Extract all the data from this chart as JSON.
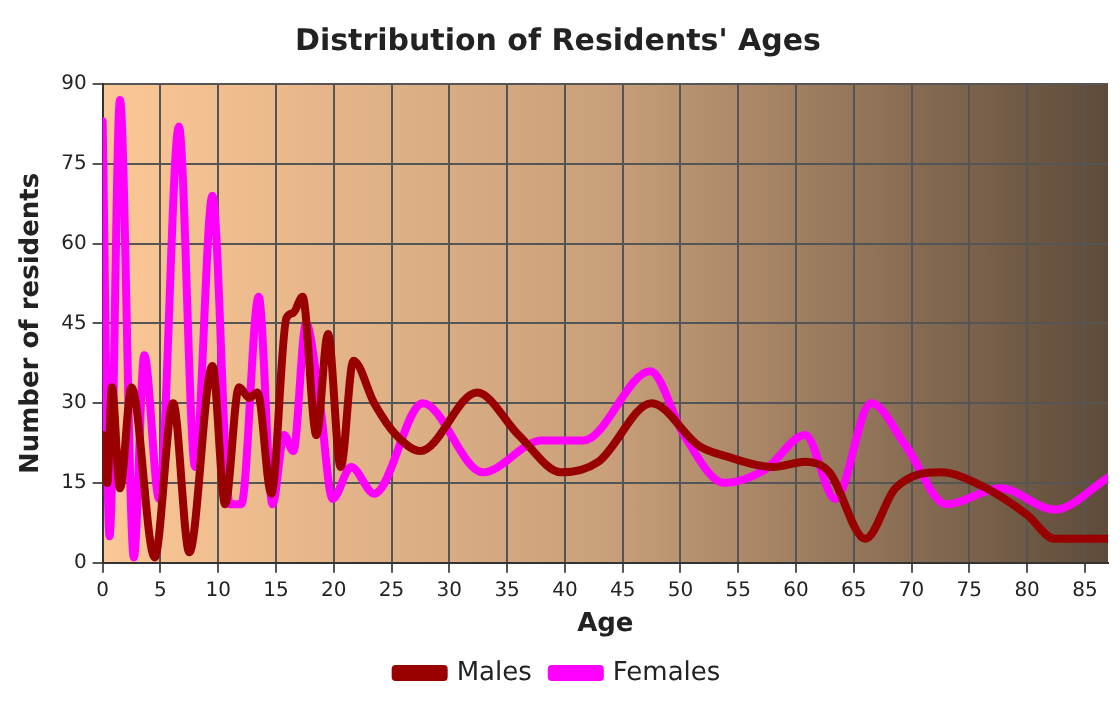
{
  "chart_data": {
    "type": "line",
    "title": "Distribution of Residents' Ages",
    "xlabel": "Age",
    "ylabel": "Number of residents",
    "xlim": [
      0,
      87
    ],
    "xticks": [
      0,
      5,
      10,
      15,
      20,
      25,
      30,
      35,
      40,
      45,
      50,
      55,
      60,
      65,
      70,
      75,
      80,
      85
    ],
    "ylim": [
      0,
      90
    ],
    "yticks": [
      0,
      15,
      30,
      45,
      60,
      75,
      90
    ],
    "grid": true,
    "legend": "bottom",
    "marker": "none",
    "line_style": "solid",
    "series": [
      {
        "name": "Males",
        "color": "#990000",
        "x": [
          0,
          0.4,
          0.8,
          1.5,
          2.5,
          4.5,
          6.1,
          7.5,
          9.5,
          10.6,
          11.8,
          12.7,
          13.4,
          14.6,
          15.9,
          16.5,
          17.3,
          18.5,
          19.5,
          20.6,
          21.7,
          23.5,
          25.4,
          27.5,
          32.4,
          36,
          39.7,
          42.9,
          47.5,
          51.6,
          54,
          58,
          60.8,
          62.9,
          66,
          68.6,
          72.5,
          76.5,
          80,
          82.4,
          87
        ],
        "values": [
          24,
          15,
          33,
          14,
          33,
          1,
          30,
          2,
          37,
          11,
          33,
          31,
          32,
          13,
          46,
          47,
          50,
          24,
          43,
          18,
          38,
          30,
          24,
          21,
          32,
          24,
          17,
          19,
          30,
          22,
          20,
          18,
          19,
          17,
          4.5,
          14,
          17,
          14,
          9,
          4.5,
          4.5
        ]
      },
      {
        "name": "Females",
        "color": "#ff00ff",
        "x": [
          0,
          0.6,
          1.5,
          2.7,
          3.6,
          4.9,
          6.6,
          8,
          9.5,
          11,
          12,
          13.5,
          14.7,
          15.7,
          16.5,
          17.6,
          18.8,
          19.9,
          21.5,
          23.5,
          27.7,
          32.9,
          38,
          41.6,
          47.4,
          50.3,
          53.8,
          57.3,
          60.8,
          63.4,
          66.5,
          69.5,
          73,
          77.7,
          82.4,
          87
        ],
        "values": [
          83,
          5,
          87,
          1,
          39,
          12,
          82,
          18,
          69,
          11,
          11,
          50,
          11,
          24,
          21,
          45,
          30,
          12,
          18,
          13,
          30,
          17,
          23,
          23,
          36,
          24,
          15,
          17.5,
          24,
          12,
          30,
          22,
          11,
          14,
          10,
          16
        ]
      }
    ]
  }
}
